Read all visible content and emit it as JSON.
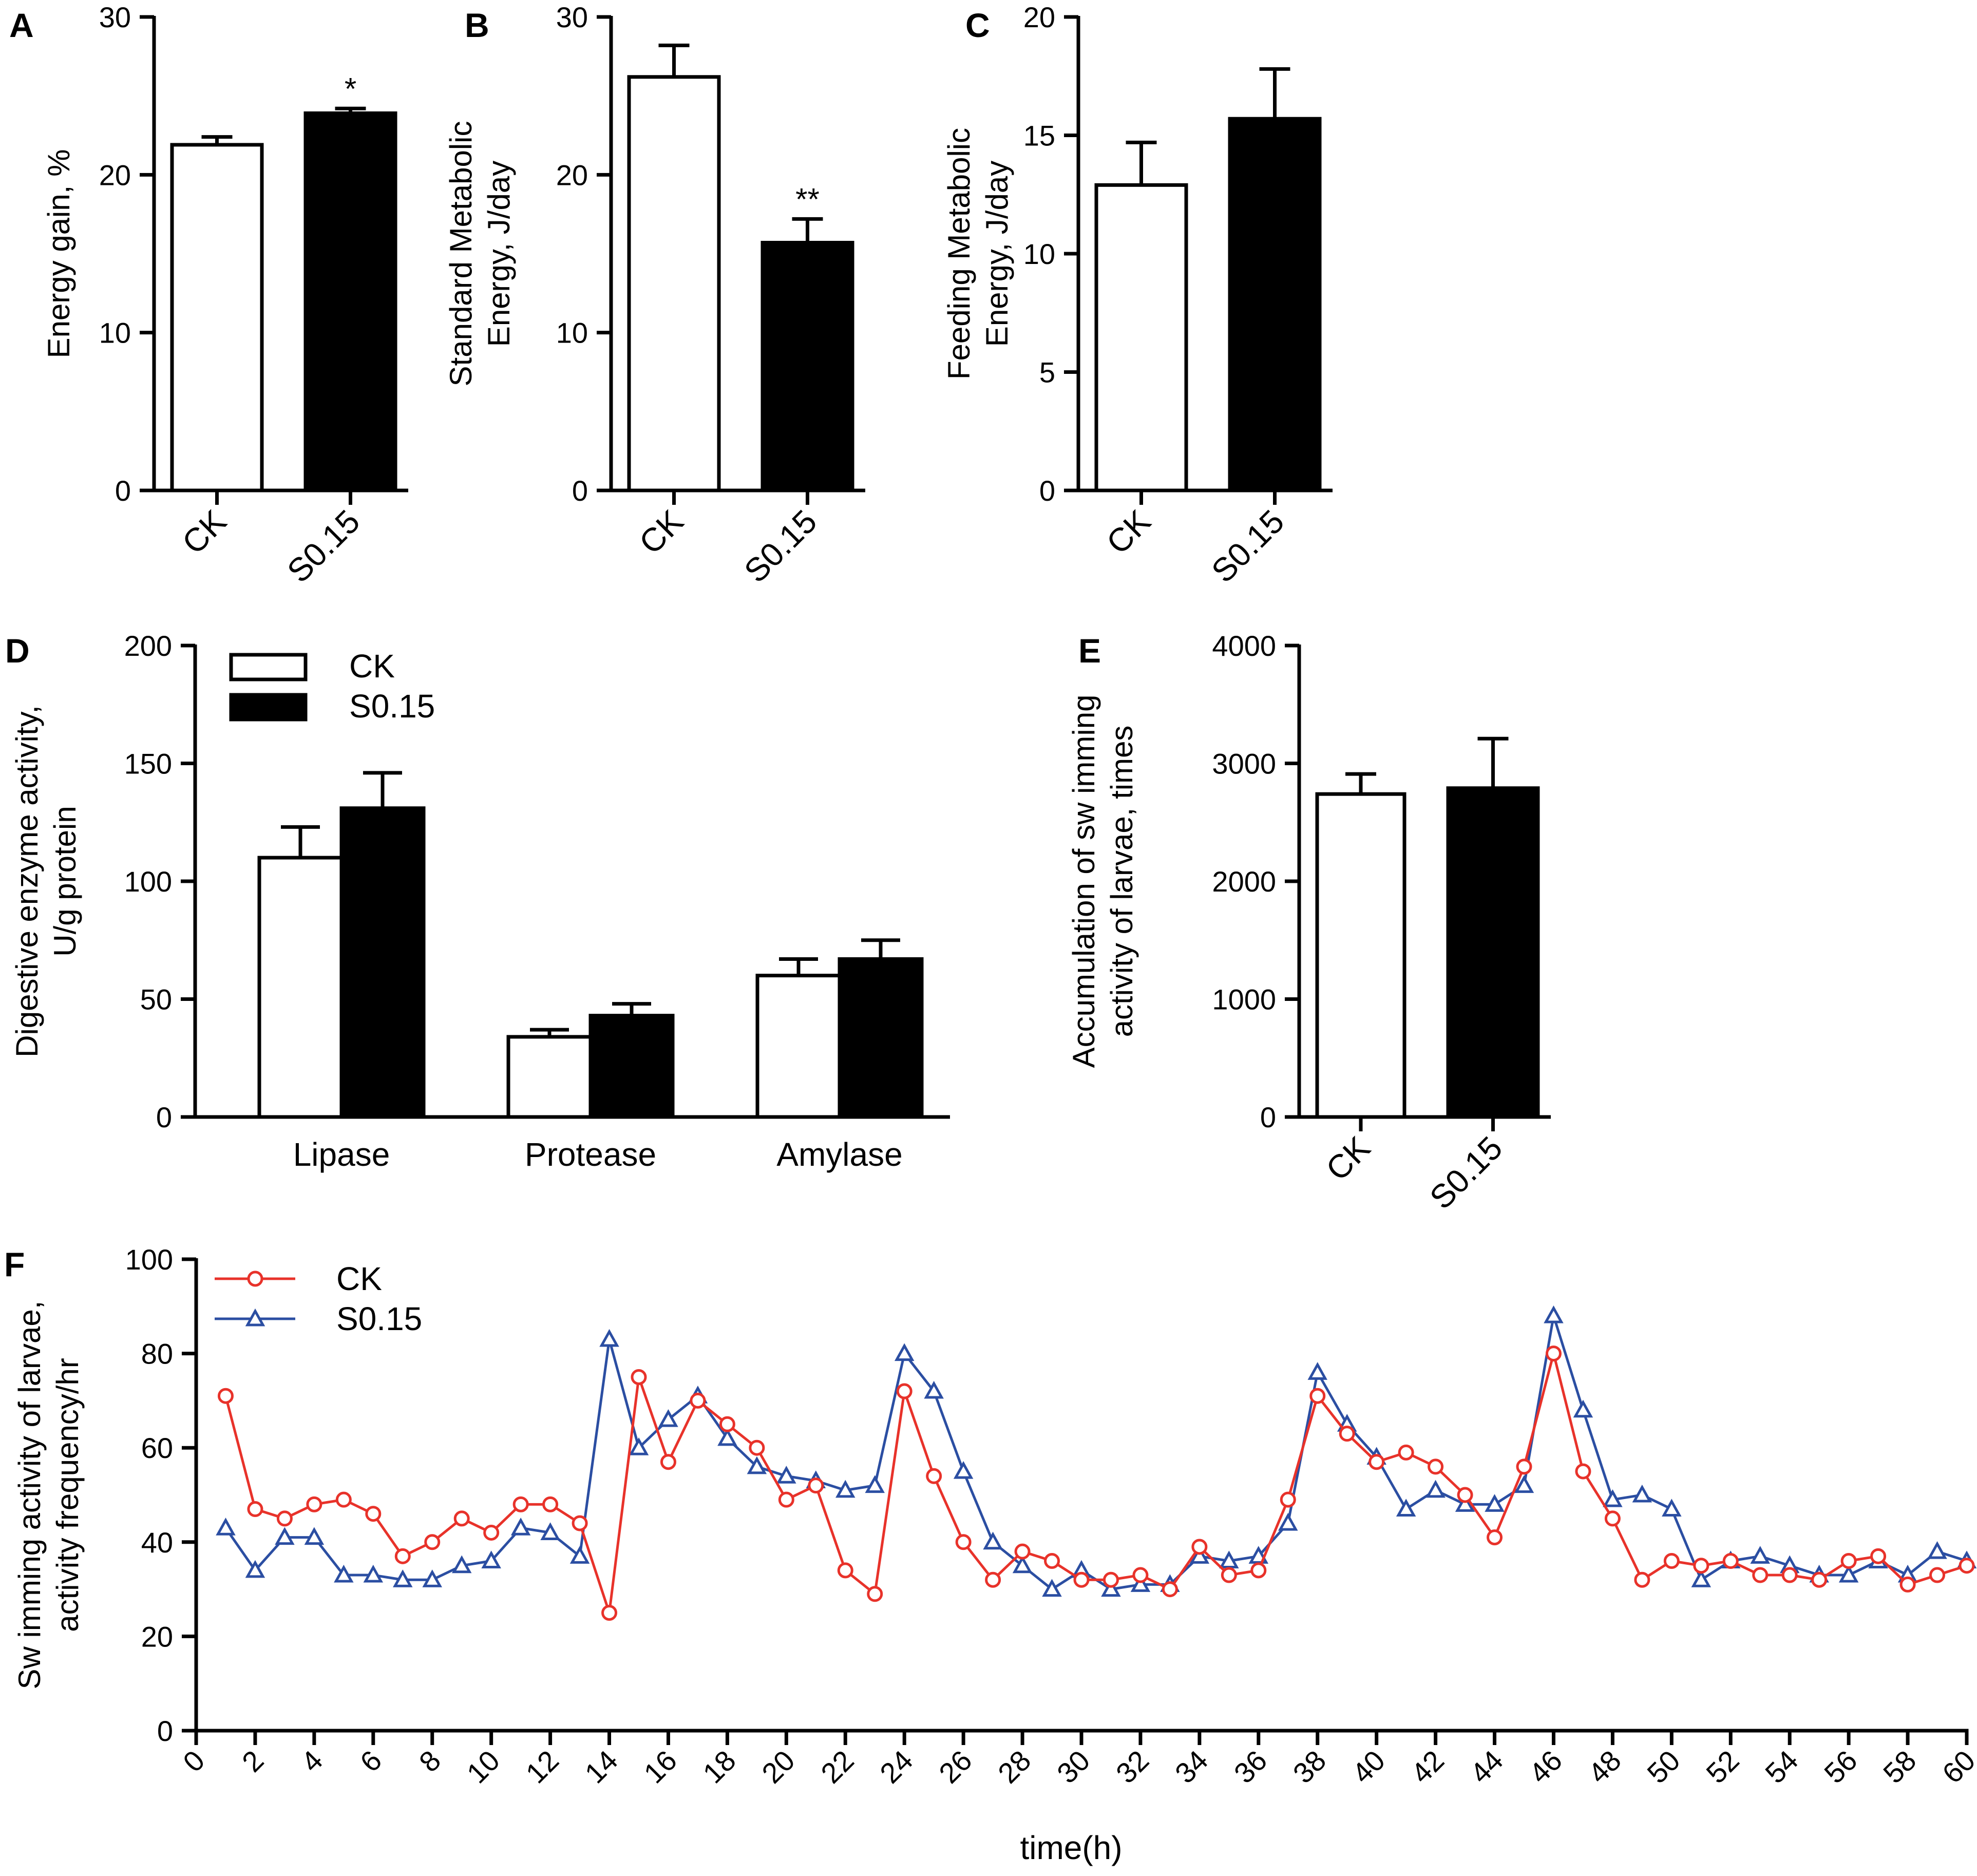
{
  "colors": {
    "ck_bar": "#ffffff",
    "s_bar": "#000000",
    "ck_line": "#e8322a",
    "s_line": "#2b4ea2"
  },
  "chart_data": [
    {
      "panel": "A",
      "type": "bar",
      "ylabel": [
        "Energy gain, %"
      ],
      "categories": [
        "CK",
        "S0.15"
      ],
      "values": [
        21.9,
        23.9
      ],
      "errors": [
        0.5,
        0.3
      ],
      "annotations": [
        "",
        "*"
      ],
      "ylim": [
        0,
        30
      ],
      "yticks": [
        0,
        10,
        20,
        30
      ]
    },
    {
      "panel": "B",
      "type": "bar",
      "ylabel": [
        "Standard Metabolic",
        "Energy, J/day"
      ],
      "categories": [
        "CK",
        "S0.15"
      ],
      "values": [
        26.2,
        15.7
      ],
      "errors": [
        2.0,
        1.5
      ],
      "annotations": [
        "",
        "**"
      ],
      "ylim": [
        0,
        30
      ],
      "yticks": [
        0,
        10,
        20,
        30
      ]
    },
    {
      "panel": "C",
      "type": "bar",
      "ylabel": [
        "Feeding Metabolic",
        "Energy, J/day"
      ],
      "categories": [
        "CK",
        "S0.15"
      ],
      "values": [
        12.9,
        15.7
      ],
      "errors": [
        1.8,
        2.1
      ],
      "annotations": [
        "",
        ""
      ],
      "ylim": [
        0,
        20
      ],
      "yticks": [
        0,
        5,
        10,
        15,
        20
      ]
    },
    {
      "panel": "D",
      "type": "bar",
      "ylabel": [
        "Digestive enzyme activity,",
        "U/g protein"
      ],
      "categories": [
        "Lipase",
        "Protease",
        "Amylase"
      ],
      "series": [
        {
          "name": "CK",
          "values": [
            110,
            34,
            60
          ],
          "errors": [
            13,
            3,
            7
          ]
        },
        {
          "name": "S0.15",
          "values": [
            131,
            43,
            67
          ],
          "errors": [
            15,
            5,
            8
          ]
        }
      ],
      "ylim": [
        0,
        200
      ],
      "yticks": [
        0,
        50,
        100,
        150,
        200
      ],
      "legend": "top-left"
    },
    {
      "panel": "E",
      "type": "bar",
      "ylabel": [
        "Accumulation of sw imming",
        "activity of larvae, times"
      ],
      "categories": [
        "CK",
        "S0.15"
      ],
      "values": [
        2740,
        2790
      ],
      "errors": [
        170,
        420
      ],
      "annotations": [
        "",
        ""
      ],
      "ylim": [
        0,
        4000
      ],
      "yticks": [
        0,
        1000,
        2000,
        3000,
        4000
      ]
    },
    {
      "panel": "F",
      "type": "line",
      "ylabel": [
        "Sw imming activity of larvae,",
        "activity frequency/hr"
      ],
      "xlabel": "time(h)",
      "x": [
        1,
        2,
        3,
        4,
        5,
        6,
        7,
        8,
        9,
        10,
        11,
        12,
        13,
        14,
        15,
        16,
        17,
        18,
        19,
        20,
        21,
        22,
        23,
        24,
        25,
        26,
        27,
        28,
        29,
        30,
        31,
        32,
        33,
        34,
        35,
        36,
        37,
        38,
        39,
        40,
        41,
        42,
        43,
        44,
        45,
        46,
        47,
        48,
        49,
        50,
        51,
        52,
        53,
        54,
        55,
        56,
        57,
        58,
        59,
        60
      ],
      "series": [
        {
          "name": "CK",
          "marker": "circle",
          "values": [
            71,
            47,
            45,
            48,
            49,
            46,
            37,
            40,
            45,
            42,
            48,
            48,
            44,
            25,
            75,
            57,
            70,
            65,
            60,
            49,
            52,
            34,
            29,
            72,
            54,
            40,
            32,
            38,
            36,
            32,
            32,
            33,
            30,
            39,
            33,
            34,
            49,
            71,
            63,
            57,
            59,
            56,
            50,
            41,
            56,
            80,
            55,
            45,
            32,
            36,
            35,
            36,
            33,
            33,
            32,
            36,
            37,
            31,
            33,
            35
          ]
        },
        {
          "name": "S0.15",
          "marker": "triangle",
          "values": [
            43,
            34,
            41,
            41,
            33,
            33,
            32,
            32,
            35,
            36,
            43,
            42,
            37,
            83,
            60,
            66,
            71,
            62,
            56,
            54,
            53,
            51,
            52,
            80,
            72,
            55,
            40,
            35,
            30,
            34,
            30,
            31,
            31,
            37,
            36,
            37,
            44,
            76,
            65,
            58,
            47,
            51,
            48,
            48,
            52,
            88,
            68,
            49,
            50,
            47,
            32,
            36,
            37,
            35,
            33,
            33,
            36,
            33,
            38,
            36
          ]
        }
      ],
      "xlim": [
        0,
        60
      ],
      "xticks": [
        0,
        2,
        4,
        6,
        8,
        10,
        12,
        14,
        16,
        18,
        20,
        22,
        24,
        26,
        28,
        30,
        32,
        34,
        36,
        38,
        40,
        42,
        44,
        46,
        48,
        50,
        52,
        54,
        56,
        58,
        60
      ],
      "ylim": [
        0,
        100
      ],
      "yticks": [
        0,
        20,
        40,
        60,
        80,
        100
      ],
      "legend": "top-left"
    }
  ]
}
